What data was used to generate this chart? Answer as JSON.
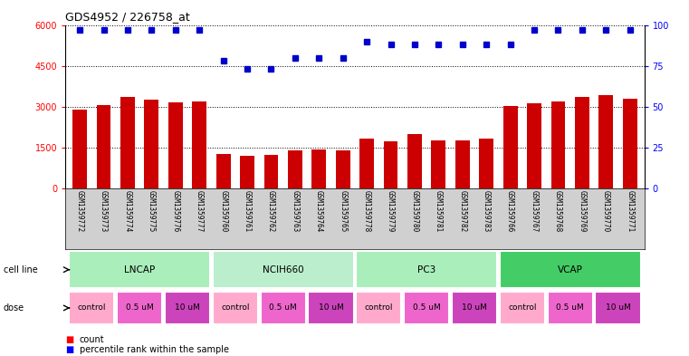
{
  "title": "GDS4952 / 226758_at",
  "samples": [
    "GSM1359772",
    "GSM1359773",
    "GSM1359774",
    "GSM1359775",
    "GSM1359776",
    "GSM1359777",
    "GSM1359760",
    "GSM1359761",
    "GSM1359762",
    "GSM1359763",
    "GSM1359764",
    "GSM1359765",
    "GSM1359778",
    "GSM1359779",
    "GSM1359780",
    "GSM1359781",
    "GSM1359782",
    "GSM1359783",
    "GSM1359766",
    "GSM1359767",
    "GSM1359768",
    "GSM1359769",
    "GSM1359770",
    "GSM1359771"
  ],
  "counts": [
    2900,
    3050,
    3350,
    3250,
    3150,
    3200,
    1280,
    1220,
    1230,
    1400,
    1430,
    1400,
    1850,
    1750,
    2000,
    1780,
    1780,
    1820,
    3020,
    3120,
    3200,
    3350,
    3430,
    3280
  ],
  "percentile_ranks": [
    97,
    97,
    97,
    97,
    97,
    97,
    78,
    73,
    73,
    80,
    80,
    80,
    90,
    88,
    88,
    88,
    88,
    88,
    88,
    97,
    97,
    97,
    97,
    97
  ],
  "cell_lines": [
    {
      "name": "LNCAP",
      "start": 0,
      "end": 6,
      "color": "#AAEEBB"
    },
    {
      "name": "NCIH660",
      "start": 6,
      "end": 12,
      "color": "#BBEECC"
    },
    {
      "name": "PC3",
      "start": 12,
      "end": 18,
      "color": "#AAEEBB"
    },
    {
      "name": "VCAP",
      "start": 18,
      "end": 24,
      "color": "#44CC66"
    }
  ],
  "doses": [
    {
      "label": "control",
      "start": 0,
      "end": 2,
      "color": "#FFAACC"
    },
    {
      "label": "0.5 uM",
      "start": 2,
      "end": 4,
      "color": "#EE66CC"
    },
    {
      "label": "10 uM",
      "start": 4,
      "end": 6,
      "color": "#CC44BB"
    },
    {
      "label": "control",
      "start": 6,
      "end": 8,
      "color": "#FFAACC"
    },
    {
      "label": "0.5 uM",
      "start": 8,
      "end": 10,
      "color": "#EE66CC"
    },
    {
      "label": "10 uM",
      "start": 10,
      "end": 12,
      "color": "#CC44BB"
    },
    {
      "label": "control",
      "start": 12,
      "end": 14,
      "color": "#FFAACC"
    },
    {
      "label": "0.5 uM",
      "start": 14,
      "end": 16,
      "color": "#EE66CC"
    },
    {
      "label": "10 uM",
      "start": 16,
      "end": 18,
      "color": "#CC44BB"
    },
    {
      "label": "control",
      "start": 18,
      "end": 20,
      "color": "#FFAACC"
    },
    {
      "label": "0.5 uM",
      "start": 20,
      "end": 22,
      "color": "#EE66CC"
    },
    {
      "label": "10 uM",
      "start": 22,
      "end": 24,
      "color": "#CC44BB"
    }
  ],
  "bar_color": "#CC0000",
  "dot_color": "#0000CC",
  "ylim_left": [
    0,
    6000
  ],
  "ylim_right": [
    0,
    100
  ],
  "yticks_left": [
    0,
    1500,
    3000,
    4500,
    6000
  ],
  "yticks_right": [
    0,
    25,
    50,
    75,
    100
  ],
  "plot_bg": "#FFFFFF",
  "xlabel_bg": "#D0D0D0"
}
